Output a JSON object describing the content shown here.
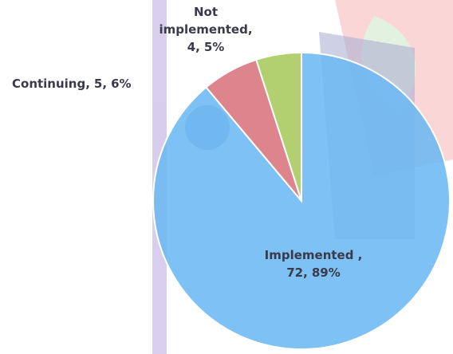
{
  "chart_data": {
    "type": "pie",
    "categories": [
      "Implemented ,",
      "Continuing,",
      "Not implemented,"
    ],
    "values": [
      72,
      5,
      4
    ],
    "value_labels": [
      "72,",
      "5,",
      "4,"
    ],
    "percents": [
      89,
      6,
      5
    ],
    "percent_labels": [
      "89%",
      "6%",
      "5%"
    ],
    "colors": [
      "#6cb8f2",
      "#d9737c",
      "#a9c95c"
    ],
    "start_angle": 0,
    "direction": "clockwise"
  }
}
